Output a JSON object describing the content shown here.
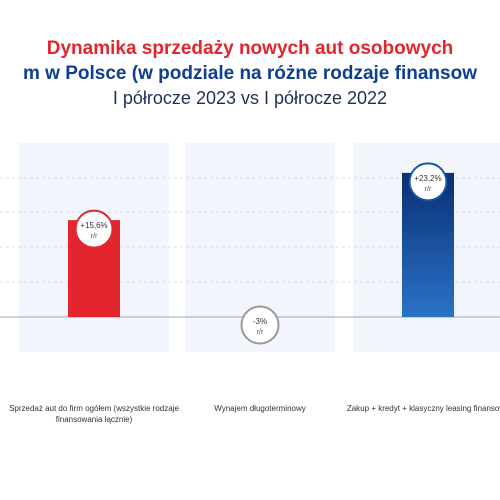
{
  "title_line1": "Dynamika sprzedaży nowych aut osobowych",
  "title_line2": "m w Polsce (w podziale na różne rodzaje finansow",
  "subtitle": "I półrocze 2023 vs I półrocze 2022",
  "chart_data": {
    "type": "bar",
    "categories": [
      "Sprzedaż aut do firm ogółem (wszystkie rodzaje finansowania łącznie)",
      "Wynajem długoterminowy",
      "Zakup + kredyt + klasyczny leasing finansowy"
    ],
    "values": [
      15.6,
      -3,
      23.2
    ],
    "data_labels": [
      "+15,6%",
      "-3%",
      "+23,2%"
    ],
    "label_unit": "r/r",
    "colors": [
      "#e3262e",
      "#7a7a7a",
      "#1654a6"
    ],
    "grid": true,
    "legend": "none"
  }
}
